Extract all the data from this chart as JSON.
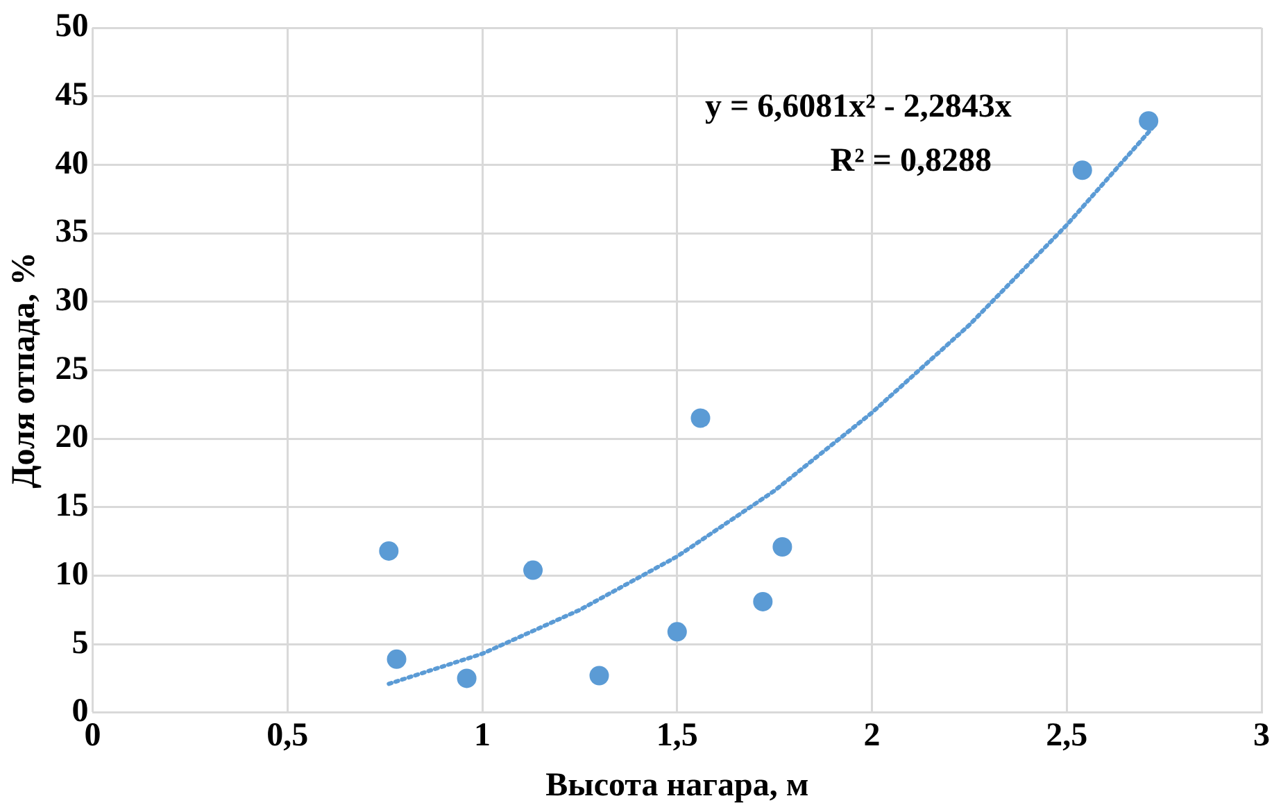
{
  "chart_data": {
    "type": "scatter",
    "xlabel": "Высота нагара, м",
    "ylabel": "Доля отпада, %",
    "xlim": [
      0,
      3
    ],
    "xticks": [
      0,
      {
        "value": 0.5,
        "label": "0,5"
      },
      1,
      {
        "value": 1.5,
        "label": "1,5"
      },
      2,
      {
        "value": 2.5,
        "label": "2,5"
      },
      3
    ],
    "ylim": [
      0,
      50
    ],
    "yticks": [
      0,
      5,
      10,
      15,
      20,
      25,
      30,
      35,
      40,
      45,
      50
    ],
    "grid": true,
    "legend": false,
    "series": [
      {
        "type": "scatter",
        "color": "#5b9bd5",
        "marker": "circle",
        "x": [
          0.76,
          0.78,
          0.96,
          1.13,
          1.3,
          1.5,
          1.56,
          1.72,
          1.77,
          2.54,
          2.71
        ],
        "values": [
          11.8,
          3.9,
          2.5,
          10.4,
          2.7,
          5.9,
          21.5,
          8.1,
          12.1,
          39.6,
          43.2
        ]
      },
      {
        "type": "line",
        "color": "#5b9bd5",
        "marker": "none",
        "line_style": "dotted",
        "x": [
          0.76,
          1,
          1.25,
          1.5,
          1.75,
          2,
          2.25,
          2.5,
          2.72
        ],
        "values": [
          2.1,
          4.3,
          7.5,
          11.4,
          16.2,
          21.9,
          28.3,
          35.6,
          42.7
        ]
      }
    ],
    "annotations": [
      "y = 6,6081x² - 2,2843x",
      "R² = 0,8288"
    ]
  }
}
